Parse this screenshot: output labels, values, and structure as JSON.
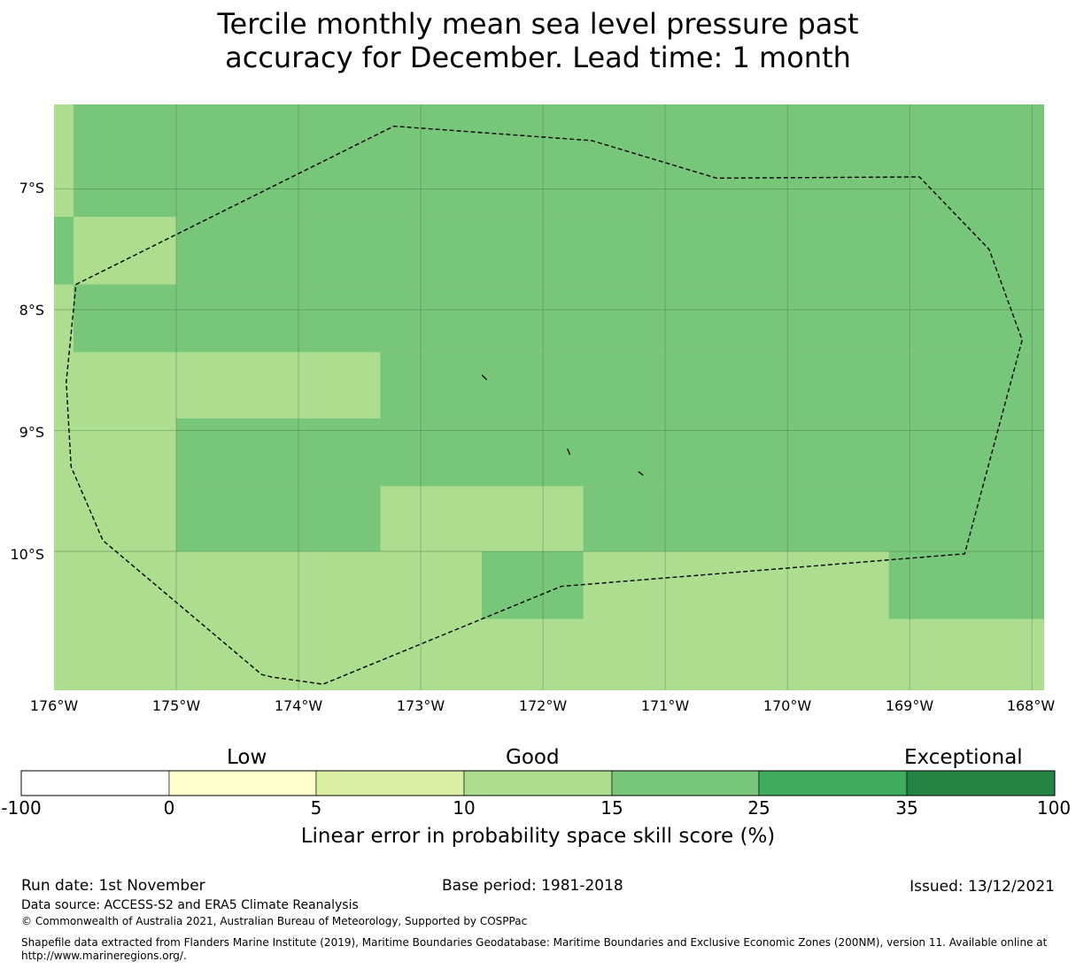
{
  "title": {
    "line1": "Tercile monthly mean sea level pressure past",
    "line2": "accuracy for December. Lead time: 1 month"
  },
  "map": {
    "lon_range": [
      -176.0,
      -167.9
    ],
    "lat_range": [
      -11.15,
      -6.3
    ],
    "lat_ticks": [
      {
        "value": -7,
        "label": "7°S"
      },
      {
        "value": -8,
        "label": "8°S"
      },
      {
        "value": -9,
        "label": "9°S"
      },
      {
        "value": -10,
        "label": "10°S"
      }
    ],
    "lon_ticks": [
      {
        "value": -176,
        "label": "176°W"
      },
      {
        "value": -175,
        "label": "175°W"
      },
      {
        "value": -174,
        "label": "174°W"
      },
      {
        "value": -173,
        "label": "173°W"
      },
      {
        "value": -172,
        "label": "172°W"
      },
      {
        "value": -171,
        "label": "171°W"
      },
      {
        "value": -170,
        "label": "170°W"
      },
      {
        "value": -169,
        "label": "169°W"
      },
      {
        "value": -168,
        "label": "168°W"
      }
    ],
    "background_category": "10-15",
    "skill_cells": [
      {
        "lon": [
          -175.84,
          -167.9
        ],
        "lat": [
          -7.23,
          -6.3
        ],
        "category": "15-25"
      },
      {
        "lon": [
          -176.0,
          -175.84
        ],
        "lat": [
          -7.79,
          -7.23
        ],
        "category": "15-25"
      },
      {
        "lon": [
          -175.0,
          -167.9
        ],
        "lat": [
          -7.79,
          -7.23
        ],
        "category": "15-25"
      },
      {
        "lon": [
          -175.84,
          -167.9
        ],
        "lat": [
          -8.35,
          -7.79
        ],
        "category": "15-25"
      },
      {
        "lon": [
          -173.33,
          -167.9
        ],
        "lat": [
          -8.9,
          -8.35
        ],
        "category": "15-25"
      },
      {
        "lon": [
          -175.0,
          -167.9
        ],
        "lat": [
          -9.46,
          -8.9
        ],
        "category": "15-25"
      },
      {
        "lon": [
          -175.0,
          -173.33
        ],
        "lat": [
          -10.0,
          -9.46
        ],
        "category": "15-25"
      },
      {
        "lon": [
          -171.67,
          -167.9
        ],
        "lat": [
          -10.0,
          -9.46
        ],
        "category": "15-25"
      },
      {
        "lon": [
          -172.5,
          -171.67
        ],
        "lat": [
          -10.56,
          -10.0
        ],
        "category": "15-25"
      },
      {
        "lon": [
          -169.17,
          -167.9
        ],
        "lat": [
          -10.56,
          -10.0
        ],
        "category": "15-25"
      }
    ],
    "eez_boundary": [
      [
        -175.82,
        -7.79
      ],
      [
        -173.22,
        -6.48
      ],
      [
        -171.6,
        -6.6
      ],
      [
        -170.58,
        -6.91
      ],
      [
        -168.92,
        -6.9
      ],
      [
        -168.35,
        -7.5
      ],
      [
        -168.08,
        -8.25
      ],
      [
        -168.55,
        -10.02
      ],
      [
        -171.85,
        -10.29
      ],
      [
        -173.8,
        -11.1
      ],
      [
        -174.22,
        -11.04
      ],
      [
        -174.3,
        -11.02
      ],
      [
        -175.6,
        -9.91
      ],
      [
        -175.86,
        -9.3
      ],
      [
        -175.9,
        -8.6
      ]
    ],
    "islands": [
      [
        [
          -172.5,
          -8.54
        ],
        [
          -172.46,
          -8.58
        ]
      ],
      [
        [
          -171.8,
          -9.15
        ],
        [
          -171.78,
          -9.2
        ]
      ],
      [
        [
          -171.22,
          -9.34
        ],
        [
          -171.18,
          -9.37
        ]
      ]
    ]
  },
  "colorbar": {
    "categories": [
      {
        "key": "<0",
        "color": "#ffffff"
      },
      {
        "key": "0-5",
        "color": "#ffffcc"
      },
      {
        "key": "5-10",
        "color": "#d9f0a3"
      },
      {
        "key": "10-15",
        "color": "#addd8e"
      },
      {
        "key": "15-25",
        "color": "#78c679"
      },
      {
        "key": "25-35",
        "color": "#41ab5d"
      },
      {
        "key": ">35",
        "color": "#238443"
      }
    ],
    "tick_labels": [
      "-100",
      "0",
      "5",
      "10",
      "15",
      "25",
      "35",
      "100"
    ],
    "category_labels": {
      "low": "Low",
      "good": "Good",
      "exceptional": "Exceptional"
    },
    "title": "Linear error in probability space skill score (%)"
  },
  "footer": {
    "run_date": "Run date: 1st November",
    "base_period": "Base period: 1981-2018",
    "issued": "Issued: 13/12/2021",
    "data_source": "Data source: ACCESS-S2 and ERA5 Climate Reanalysis",
    "copyright": "© Commonwealth of Australia 2021, Australian Bureau of Meteorology, Supported by COSPPac",
    "shapefile_line1": "Shapefile data extracted from Flanders Marine Institute (2019), Maritime Boundaries Geodatabase: Maritime Boundaries and Exclusive Economic Zones (200NM), version 11. Available online at",
    "shapefile_line2": "http://www.marineregions.org/."
  }
}
